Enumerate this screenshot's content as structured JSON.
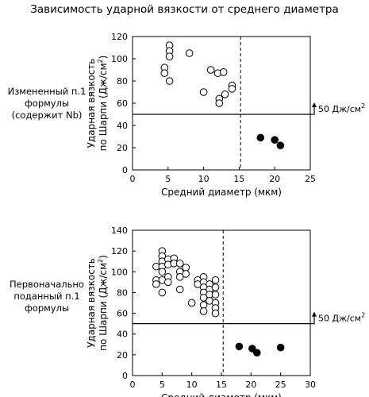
{
  "figure_title": "Зависимость ударной вязкости от среднего диаметра",
  "chart_data": [
    {
      "type": "scatter",
      "side_label": [
        "Измененный п.1",
        "формулы",
        "(содержит Nb)"
      ],
      "xlabel": "Средний диаметр (мкм)",
      "ylabel_line1": "Ударная вязкость",
      "ylabel_line2": "по Шарпи (Дж/см",
      "ylabel_sup": "2",
      "ylabel_close": ")",
      "xlim": [
        0,
        25
      ],
      "ylim": [
        0,
        120
      ],
      "xticks": [
        0,
        5,
        10,
        15,
        20,
        25
      ],
      "yticks": [
        0,
        20,
        40,
        60,
        80,
        100,
        120
      ],
      "threshold_value": 50,
      "threshold_label": "50 Дж/см",
      "threshold_sup": "2",
      "vline_x": 15.2,
      "open_points": [
        {
          "x": 4.5,
          "y": 92
        },
        {
          "x": 4.5,
          "y": 87
        },
        {
          "x": 5.2,
          "y": 112
        },
        {
          "x": 5.2,
          "y": 107
        },
        {
          "x": 5.2,
          "y": 102
        },
        {
          "x": 5.2,
          "y": 80
        },
        {
          "x": 8,
          "y": 105
        },
        {
          "x": 10,
          "y": 70
        },
        {
          "x": 11,
          "y": 90
        },
        {
          "x": 12,
          "y": 87
        },
        {
          "x": 12.2,
          "y": 64
        },
        {
          "x": 12.2,
          "y": 60
        },
        {
          "x": 12.8,
          "y": 88
        },
        {
          "x": 13,
          "y": 68
        },
        {
          "x": 14,
          "y": 76
        },
        {
          "x": 14,
          "y": 73
        }
      ],
      "filled_points": [
        {
          "x": 18,
          "y": 29
        },
        {
          "x": 20,
          "y": 27
        },
        {
          "x": 20.8,
          "y": 22
        }
      ]
    },
    {
      "type": "scatter",
      "side_label": [
        "Первоначально",
        "поданный п.1",
        "формулы"
      ],
      "xlabel": "Средний диаметр (мкм)",
      "ylabel_line1": "Ударная вязкость",
      "ylabel_line2": "по Шарпи (Дж/см",
      "ylabel_sup": "2",
      "ylabel_close": ")",
      "xlim": [
        0,
        30
      ],
      "ylim": [
        0,
        140
      ],
      "xticks": [
        0,
        5,
        10,
        15,
        20,
        25,
        30
      ],
      "yticks": [
        0,
        20,
        40,
        60,
        80,
        100,
        120,
        140
      ],
      "threshold_value": 50,
      "threshold_label": "50 Дж/см",
      "threshold_sup": "2",
      "vline_x": 15.3,
      "open_points": [
        {
          "x": 4,
          "y": 105
        },
        {
          "x": 4,
          "y": 92
        },
        {
          "x": 4,
          "y": 88
        },
        {
          "x": 5,
          "y": 120
        },
        {
          "x": 5,
          "y": 115
        },
        {
          "x": 5,
          "y": 110
        },
        {
          "x": 5,
          "y": 105
        },
        {
          "x": 5,
          "y": 100
        },
        {
          "x": 5,
          "y": 92
        },
        {
          "x": 5,
          "y": 80
        },
        {
          "x": 6,
          "y": 112
        },
        {
          "x": 6,
          "y": 107
        },
        {
          "x": 6,
          "y": 95
        },
        {
          "x": 6,
          "y": 90
        },
        {
          "x": 7,
          "y": 113
        },
        {
          "x": 7,
          "y": 108
        },
        {
          "x": 8,
          "y": 108
        },
        {
          "x": 8,
          "y": 100
        },
        {
          "x": 8,
          "y": 95
        },
        {
          "x": 8,
          "y": 83
        },
        {
          "x": 9,
          "y": 104
        },
        {
          "x": 9,
          "y": 98
        },
        {
          "x": 10,
          "y": 70
        },
        {
          "x": 11,
          "y": 92
        },
        {
          "x": 11,
          "y": 88
        },
        {
          "x": 12,
          "y": 95
        },
        {
          "x": 12,
          "y": 90
        },
        {
          "x": 12,
          "y": 85
        },
        {
          "x": 12,
          "y": 80
        },
        {
          "x": 12,
          "y": 75
        },
        {
          "x": 12,
          "y": 68
        },
        {
          "x": 12,
          "y": 62
        },
        {
          "x": 13,
          "y": 88
        },
        {
          "x": 13,
          "y": 83
        },
        {
          "x": 13,
          "y": 78
        },
        {
          "x": 13,
          "y": 72
        },
        {
          "x": 14,
          "y": 92
        },
        {
          "x": 14,
          "y": 85
        },
        {
          "x": 14,
          "y": 78
        },
        {
          "x": 14,
          "y": 70
        },
        {
          "x": 14,
          "y": 65
        },
        {
          "x": 14,
          "y": 60
        }
      ],
      "filled_points": [
        {
          "x": 18,
          "y": 28
        },
        {
          "x": 20.2,
          "y": 26
        },
        {
          "x": 21,
          "y": 22
        },
        {
          "x": 25,
          "y": 27
        }
      ]
    }
  ]
}
